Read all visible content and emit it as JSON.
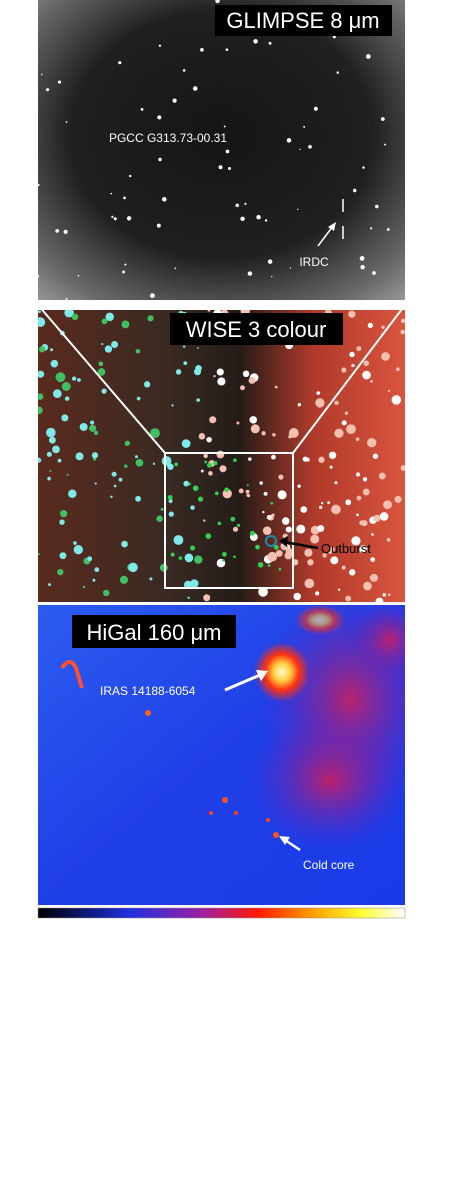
{
  "panels": [
    {
      "title": "GLIMPSE 8 μm",
      "labels": [
        "PGCC G313.73-00.31",
        "IRDC"
      ]
    },
    {
      "title": "WISE 3 colour",
      "labels": [
        "Outburst"
      ]
    },
    {
      "title": "HiGal 160 μm",
      "labels": [
        "IRAS 14188-6054",
        "Cold core"
      ]
    }
  ]
}
